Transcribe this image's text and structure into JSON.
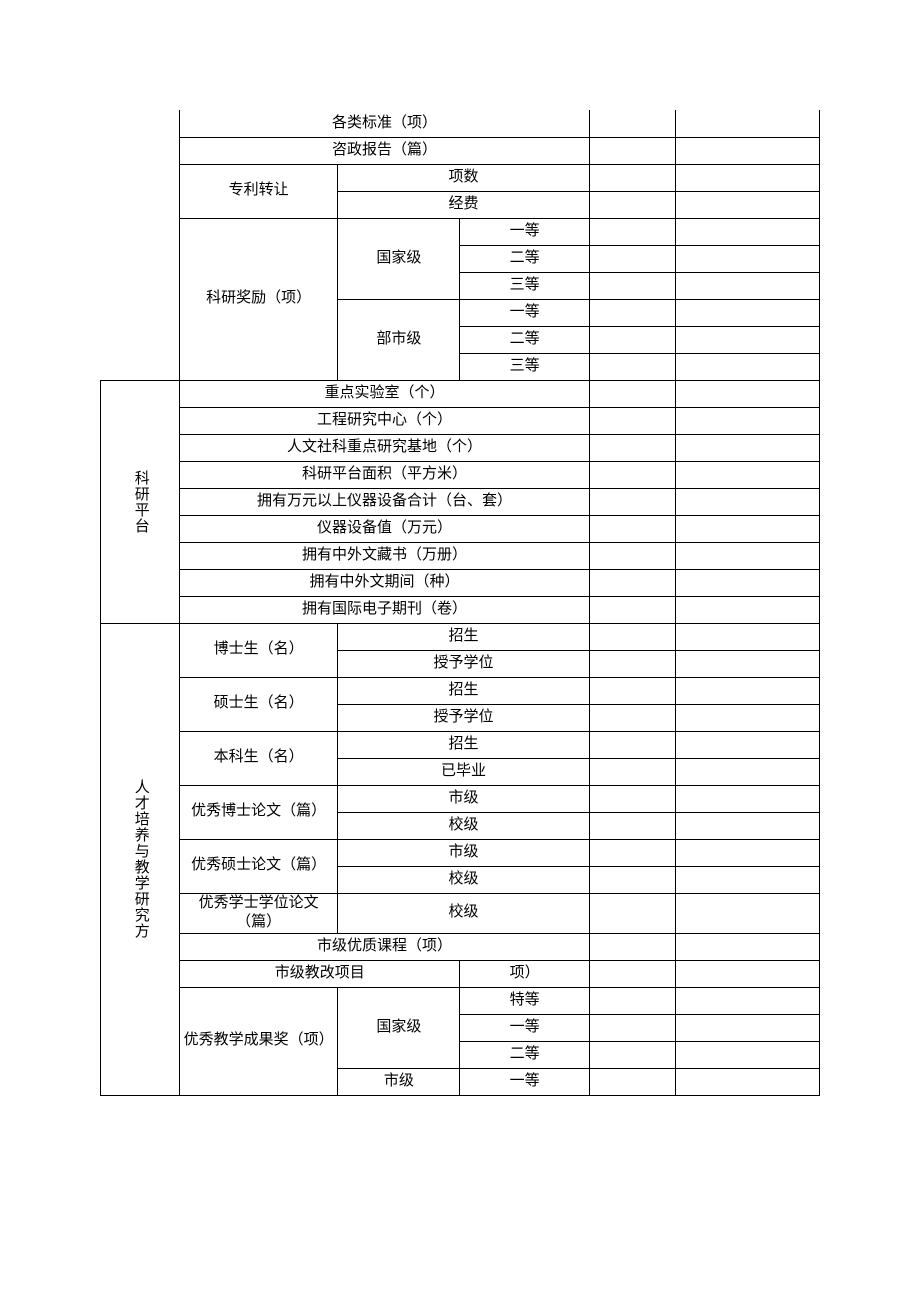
{
  "section1": {
    "standards": "各类标准（项）",
    "advisory": "咨政报告（篇）",
    "patent_transfer": "专利转让",
    "patent_count": "项数",
    "patent_fee": "经费",
    "research_award": "科研奖励（项）",
    "national": "国家级",
    "ministry": "部市级",
    "first": "一等",
    "second": "二等",
    "third": "三等"
  },
  "platform": {
    "title": "科研平台",
    "keylab": "重点实验室（个）",
    "engcenter": "工程研究中心（个）",
    "humanities": "人文社科重点研究基地（个）",
    "area": "科研平台面积（平方米）",
    "instruments": "拥有万元以上仪器设备合计（台、套）",
    "equipment_value": "仪器设备值（万元）",
    "books": "拥有中外文藏书（万册）",
    "journals": "拥有中外文期间（种）",
    "ejournals": "拥有国际电子期刊（卷）"
  },
  "talent": {
    "title": "人才培养与教学研究方",
    "phd": "博士生（名）",
    "master": "硕士生（名）",
    "undergrad": "本科生（名）",
    "enroll": "招生",
    "degree": "授予学位",
    "graduated": "已毕业",
    "ex_phd_thesis": "优秀博士论文（篇）",
    "ex_master_thesis": "优秀硕士论文（篇）",
    "ex_bachelor_thesis": "优秀学士学位论文（篇）",
    "city_level": "市级",
    "school_level": "校级",
    "city_course": "市级优质课程（项）",
    "city_reform_a": "市级教改项目",
    "city_reform_b": "项）",
    "teaching_award": "优秀教学成果奖（项）",
    "national": "国家级",
    "city": "市级",
    "special": "特等",
    "first": "一等",
    "second": "二等"
  },
  "colors": {
    "border": "#000000",
    "text": "#000000",
    "bg": "#ffffff"
  },
  "font": {
    "family": "SimSun",
    "body_size_pt": 11
  }
}
